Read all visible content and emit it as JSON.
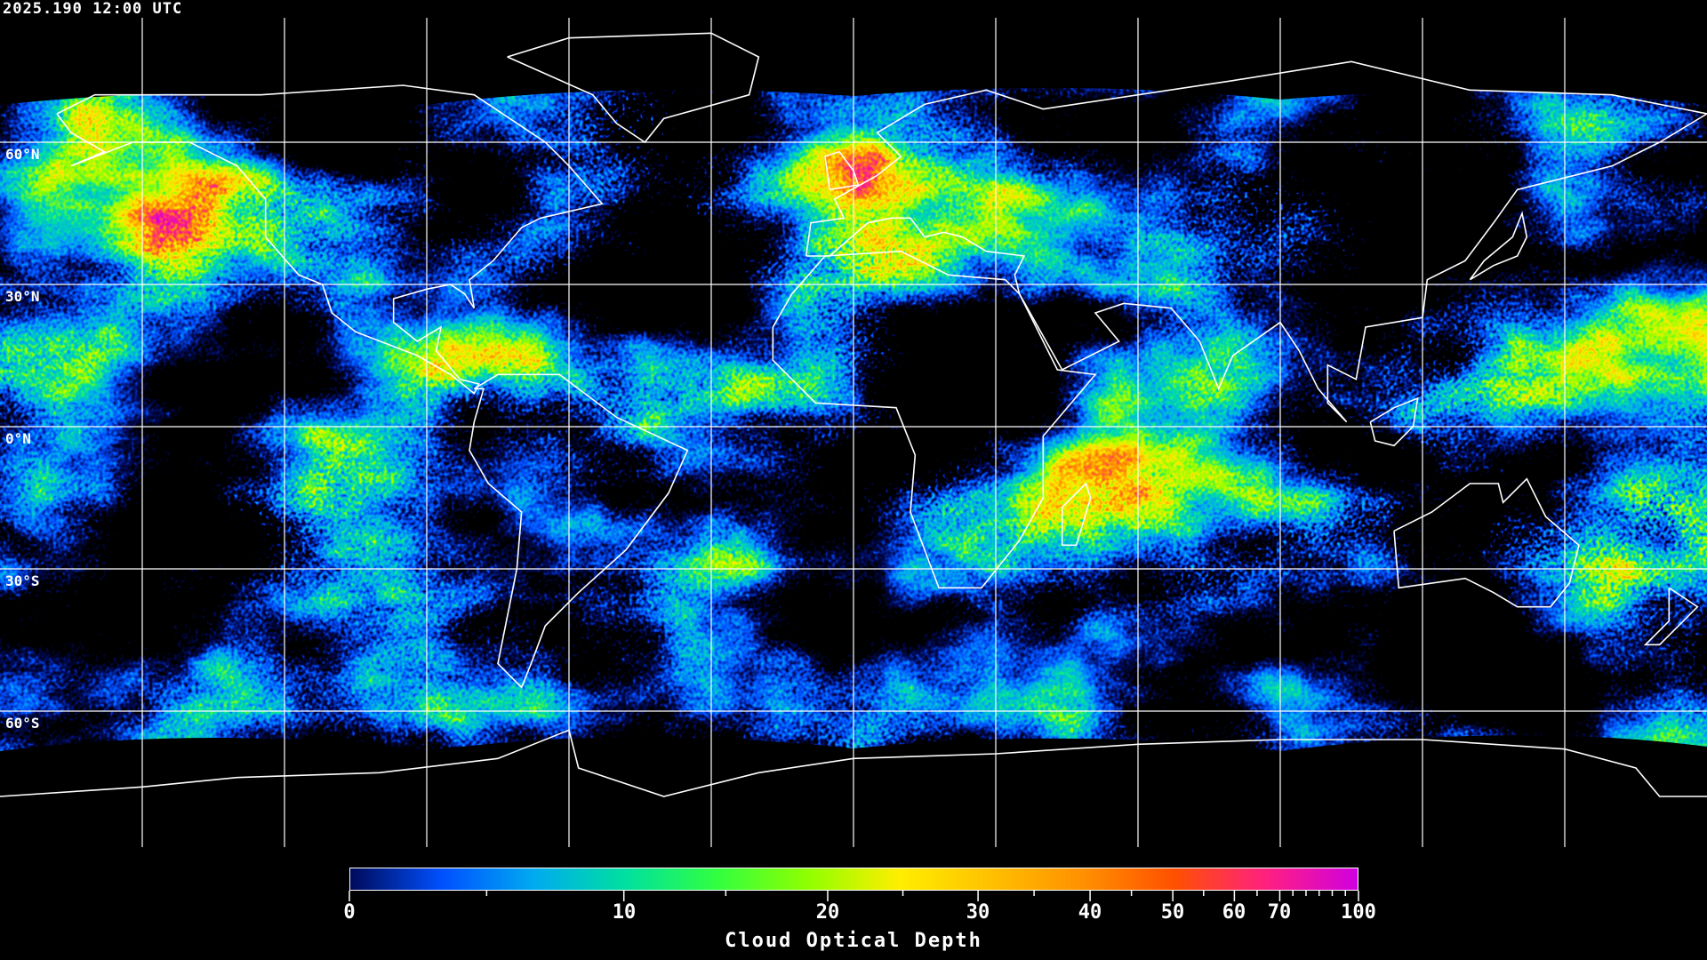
{
  "header": {
    "timestamp": "2025.190 12:00 UTC"
  },
  "map": {
    "projection": "equirectangular",
    "graticule_step_deg": 30,
    "lat_labels": [
      "60°N",
      "30°N",
      "0°N",
      "30°S",
      "60°S"
    ],
    "coastline_color": "#ffffff",
    "gridline_color": "#ffffff",
    "background": "#000000"
  },
  "colorbar": {
    "title": "Cloud Optical Depth",
    "min": 0,
    "max": 100,
    "tick_labels": [
      "0",
      "10",
      "20",
      "30",
      "40",
      "50",
      "60",
      "70",
      "100"
    ],
    "colormap": [
      "#000a5a",
      "#0050ff",
      "#00aaf0",
      "#00e0a0",
      "#30ff40",
      "#90ff00",
      "#ffee00",
      "#ffc000",
      "#ff9000",
      "#ff5000",
      "#ff2080",
      "#d000e0"
    ]
  }
}
